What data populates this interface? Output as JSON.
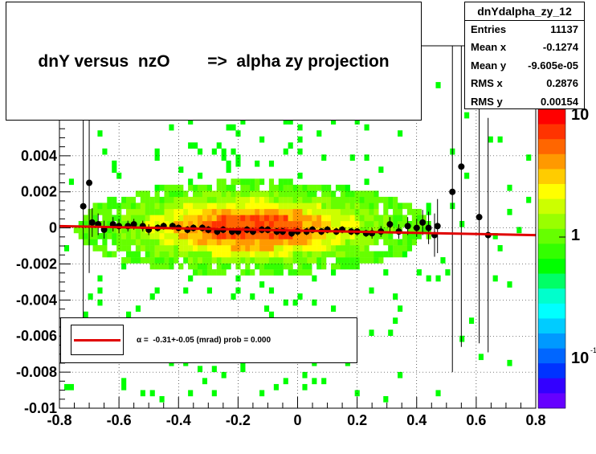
{
  "title": "dnY versus  nzO        =>  alpha zy projection",
  "stats": {
    "name": "dnYdalpha_zy_12",
    "rows": [
      {
        "label": "Entries",
        "value": "11137"
      },
      {
        "label": "Mean x",
        "value": "-0.1274"
      },
      {
        "label": "Mean y",
        "value": "-9.605e-05"
      },
      {
        "label": "RMS x",
        "value": "0.2876"
      },
      {
        "label": "RMS y",
        "value": "0.00154"
      }
    ]
  },
  "legend": {
    "fit_label": "α =  -0.31+-0.05 (mrad) prob = 0.000",
    "line_color": "#e00000"
  },
  "palette": {
    "labels": [
      {
        "text": "10",
        "exp": ""
      },
      {
        "text": "1",
        "exp": ""
      },
      {
        "text": "10",
        "exp": "-1"
      }
    ],
    "colors": [
      "#ff0000",
      "#ff3300",
      "#ff6600",
      "#ff9900",
      "#ffcc00",
      "#ffff00",
      "#ccff00",
      "#99ff00",
      "#66ff00",
      "#33ff00",
      "#00ff00",
      "#00ff66",
      "#00ffcc",
      "#00ffff",
      "#00ccff",
      "#0099ff",
      "#0066ff",
      "#0033ff",
      "#3300ff",
      "#6600ff"
    ]
  },
  "chart_data": {
    "type": "heatmap",
    "title": "dnY versus  nzO        =>  alpha zy projection",
    "xlabel": "",
    "ylabel": "",
    "xlim": [
      -0.8,
      0.8
    ],
    "ylim": [
      -0.01,
      0.0101
    ],
    "z_scale": "log",
    "x_ticks": [
      "-0.8",
      "-0.6",
      "-0.4",
      "-0.2",
      "0",
      "0.2",
      "0.4",
      "0.6",
      "0.8"
    ],
    "y_ticks": [
      "-0.01",
      "-0.008",
      "-0.006",
      "-0.004",
      "-0.002",
      "0",
      "0.002",
      "0.004"
    ],
    "grid": true,
    "profile_points": [
      {
        "x": -0.72,
        "y": 0.0012,
        "err": 0.008
      },
      {
        "x": -0.7,
        "y": 0.0025,
        "err": 0.005
      },
      {
        "x": -0.69,
        "y": 0.0003,
        "err": 0.0008
      },
      {
        "x": -0.67,
        "y": 0.0002,
        "err": 0.0006
      },
      {
        "x": -0.65,
        "y": -0.0001,
        "err": 0.0005
      },
      {
        "x": -0.62,
        "y": 0.0002,
        "err": 0.0004
      },
      {
        "x": -0.6,
        "y": 0.0001,
        "err": 0.0004
      },
      {
        "x": -0.57,
        "y": 0.0001,
        "err": 0.0003
      },
      {
        "x": -0.55,
        "y": 0.0002,
        "err": 0.0003
      },
      {
        "x": -0.52,
        "y": 0.0001,
        "err": 0.0003
      },
      {
        "x": -0.5,
        "y": -0.0001,
        "err": 0.0003
      },
      {
        "x": -0.47,
        "y": 0.0,
        "err": 0.0002
      },
      {
        "x": -0.45,
        "y": 0.0001,
        "err": 0.0002
      },
      {
        "x": -0.42,
        "y": 0.0001,
        "err": 0.0002
      },
      {
        "x": -0.4,
        "y": 0.0,
        "err": 0.0002
      },
      {
        "x": -0.37,
        "y": -0.0001,
        "err": 0.0002
      },
      {
        "x": -0.35,
        "y": 0.0,
        "err": 0.0002
      },
      {
        "x": -0.32,
        "y": 0.0,
        "err": 0.0002
      },
      {
        "x": -0.3,
        "y": -0.0001,
        "err": 0.0002
      },
      {
        "x": -0.27,
        "y": -0.0002,
        "err": 0.0002
      },
      {
        "x": -0.25,
        "y": -0.0001,
        "err": 0.0002
      },
      {
        "x": -0.22,
        "y": -0.0002,
        "err": 0.0002
      },
      {
        "x": -0.2,
        "y": -0.0002,
        "err": 0.0002
      },
      {
        "x": -0.17,
        "y": -0.0001,
        "err": 0.0002
      },
      {
        "x": -0.15,
        "y": -0.0002,
        "err": 0.0002
      },
      {
        "x": -0.12,
        "y": -0.0001,
        "err": 0.0002
      },
      {
        "x": -0.1,
        "y": -0.0001,
        "err": 0.0002
      },
      {
        "x": -0.07,
        "y": -0.0002,
        "err": 0.0002
      },
      {
        "x": -0.05,
        "y": -0.0002,
        "err": 0.0002
      },
      {
        "x": -0.02,
        "y": -0.0003,
        "err": 0.0002
      },
      {
        "x": 0.0,
        "y": -0.0002,
        "err": 0.0002
      },
      {
        "x": 0.03,
        "y": -0.0002,
        "err": 0.0002
      },
      {
        "x": 0.05,
        "y": -0.0001,
        "err": 0.0002
      },
      {
        "x": 0.08,
        "y": -0.0002,
        "err": 0.0002
      },
      {
        "x": 0.1,
        "y": -0.0001,
        "err": 0.0002
      },
      {
        "x": 0.13,
        "y": -0.0002,
        "err": 0.0002
      },
      {
        "x": 0.15,
        "y": -0.0001,
        "err": 0.0002
      },
      {
        "x": 0.18,
        "y": -0.0002,
        "err": 0.0002
      },
      {
        "x": 0.2,
        "y": -0.0002,
        "err": 0.0002
      },
      {
        "x": 0.23,
        "y": -0.0003,
        "err": 0.0002
      },
      {
        "x": 0.25,
        "y": -0.0003,
        "err": 0.0003
      },
      {
        "x": 0.28,
        "y": -0.0002,
        "err": 0.0003
      },
      {
        "x": 0.31,
        "y": 0.0002,
        "err": 0.0004
      },
      {
        "x": 0.34,
        "y": -0.0002,
        "err": 0.0004
      },
      {
        "x": 0.37,
        "y": 0.0001,
        "err": 0.0005
      },
      {
        "x": 0.4,
        "y": 0.0,
        "err": 0.0005
      },
      {
        "x": 0.42,
        "y": 0.0003,
        "err": 0.0007
      },
      {
        "x": 0.44,
        "y": 0.0,
        "err": 0.0009
      },
      {
        "x": 0.46,
        "y": -0.0004,
        "err": 0.0012
      },
      {
        "x": 0.47,
        "y": 0.0001,
        "err": 0.0015
      },
      {
        "x": 0.52,
        "y": 0.002,
        "err": 0.01
      },
      {
        "x": 0.55,
        "y": 0.0034,
        "err": 0.01
      },
      {
        "x": 0.61,
        "y": 0.0006,
        "err": 0.007
      },
      {
        "x": 0.64,
        "y": -0.0004,
        "err": 0.0065
      }
    ],
    "fit_line": {
      "x": [
        -0.8,
        0.8
      ],
      "y": [
        0.0001,
        -0.0004
      ]
    }
  }
}
